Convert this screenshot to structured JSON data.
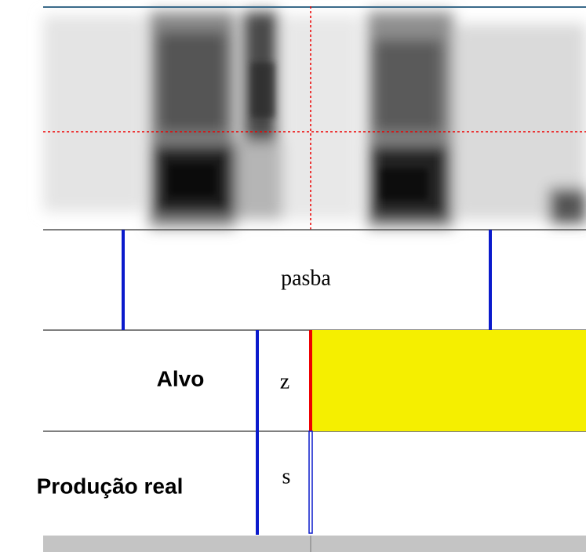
{
  "tiers": [
    {
      "intervals": [
        "pasba"
      ]
    },
    {
      "label": "Alvo",
      "intervals": [
        "z"
      ]
    },
    {
      "label": "Produção real",
      "intervals": [
        "s"
      ]
    }
  ]
}
